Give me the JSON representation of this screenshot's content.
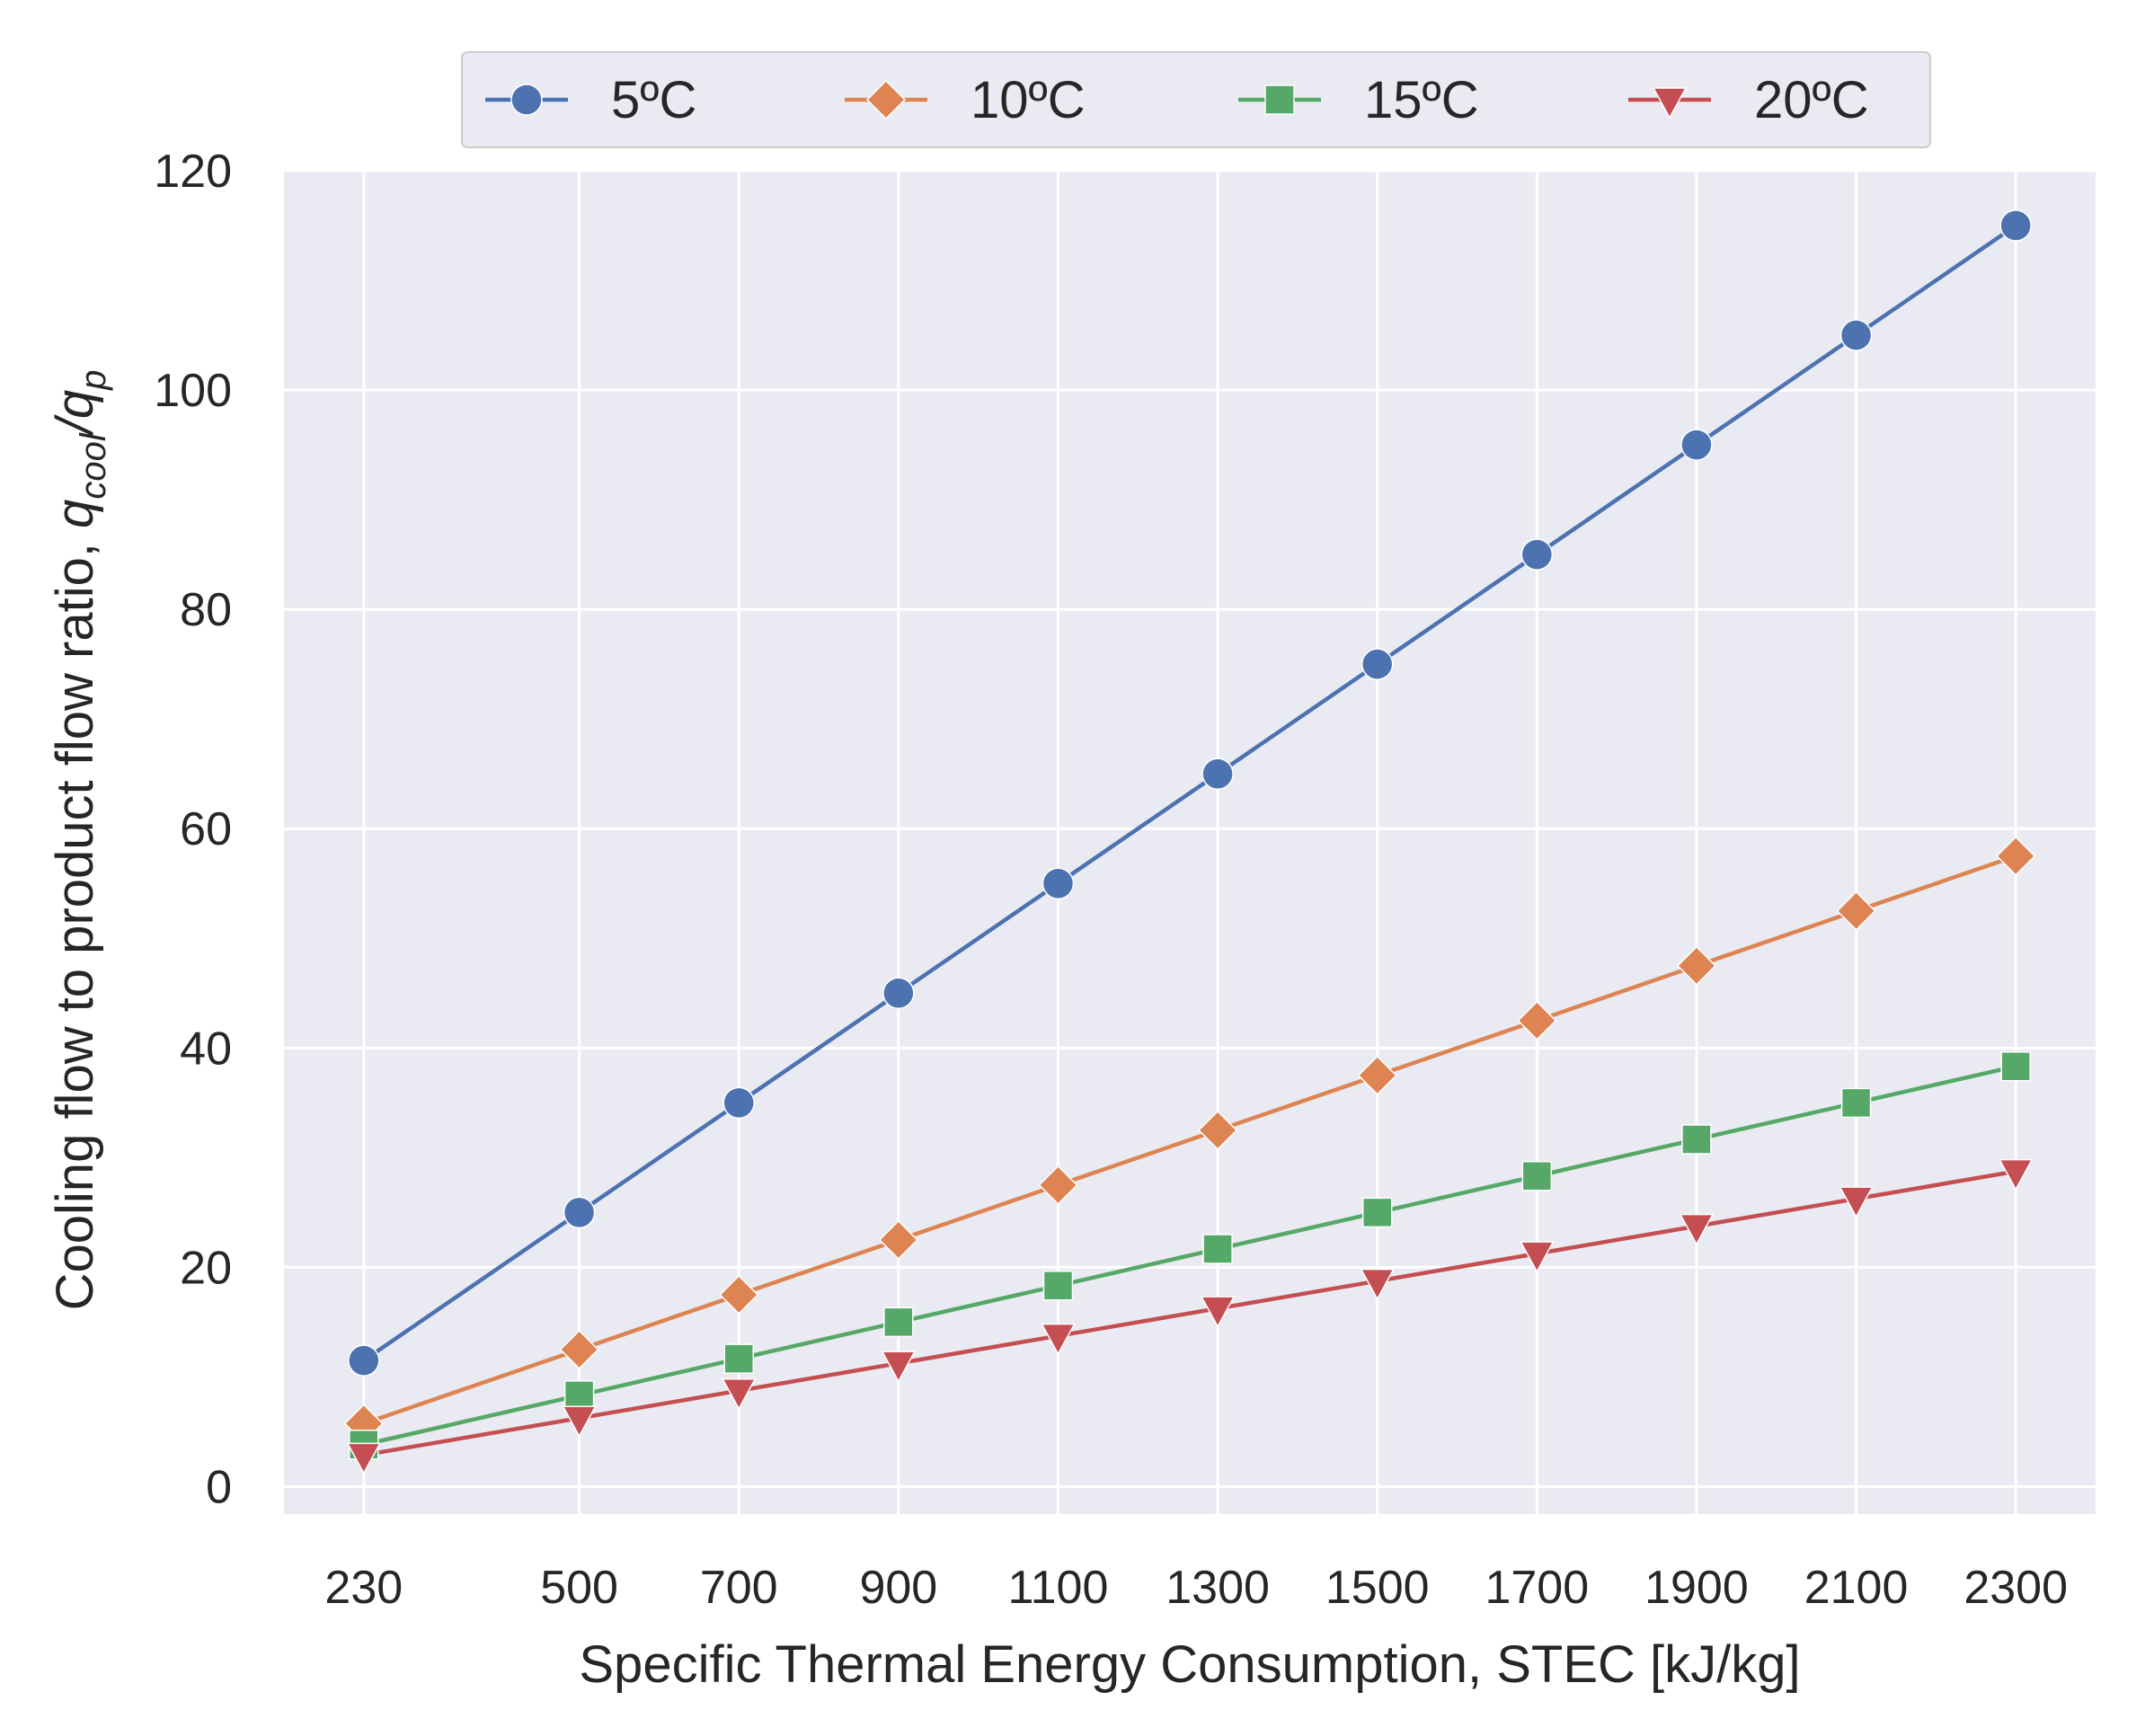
{
  "chart_data": {
    "type": "line",
    "title": "",
    "xlabel": "Specific Thermal Energy Consumption, STEC [kJ/kg]",
    "ylabel": "Cooling flow to product flow ratio, ",
    "ylabel_math": {
      "base": "q",
      "sub1": "cool",
      "slash": "/",
      "base2": "q",
      "sub2": "p"
    },
    "x": [
      230,
      500,
      700,
      900,
      1100,
      1300,
      1500,
      1700,
      1900,
      2100,
      2300
    ],
    "x_ticks": [
      "230",
      "500",
      "700",
      "900",
      "1100",
      "1300",
      "1500",
      "1700",
      "1900",
      "2100",
      "2300"
    ],
    "y_ticks": [
      "0",
      "20",
      "40",
      "60",
      "80",
      "100",
      "120"
    ],
    "xlim": [
      130,
      2400
    ],
    "ylim": [
      -2.5,
      120
    ],
    "grid": true,
    "legend_position": "top-center, outside plot",
    "background": "#eaeaf2",
    "series": [
      {
        "name": "5ºC",
        "marker": "circle",
        "color": "#4c72b0",
        "values": [
          11.5,
          25,
          35,
          45,
          55,
          65,
          75,
          85,
          95,
          105,
          115
        ]
      },
      {
        "name": "10ºC",
        "marker": "diamond",
        "color": "#dd8452",
        "values": [
          5.75,
          12.5,
          17.5,
          22.5,
          27.5,
          32.5,
          37.5,
          42.5,
          47.5,
          52.5,
          57.5
        ]
      },
      {
        "name": "15ºC",
        "marker": "square",
        "color": "#55a868",
        "values": [
          3.83,
          8.33,
          11.67,
          15,
          18.33,
          21.67,
          25,
          28.33,
          31.67,
          35,
          38.33
        ]
      },
      {
        "name": "20ºC",
        "marker": "triangle-down",
        "color": "#c44e52",
        "values": [
          2.88,
          6.25,
          8.75,
          11.25,
          13.75,
          16.25,
          18.75,
          21.25,
          23.75,
          26.25,
          28.75
        ]
      }
    ]
  }
}
